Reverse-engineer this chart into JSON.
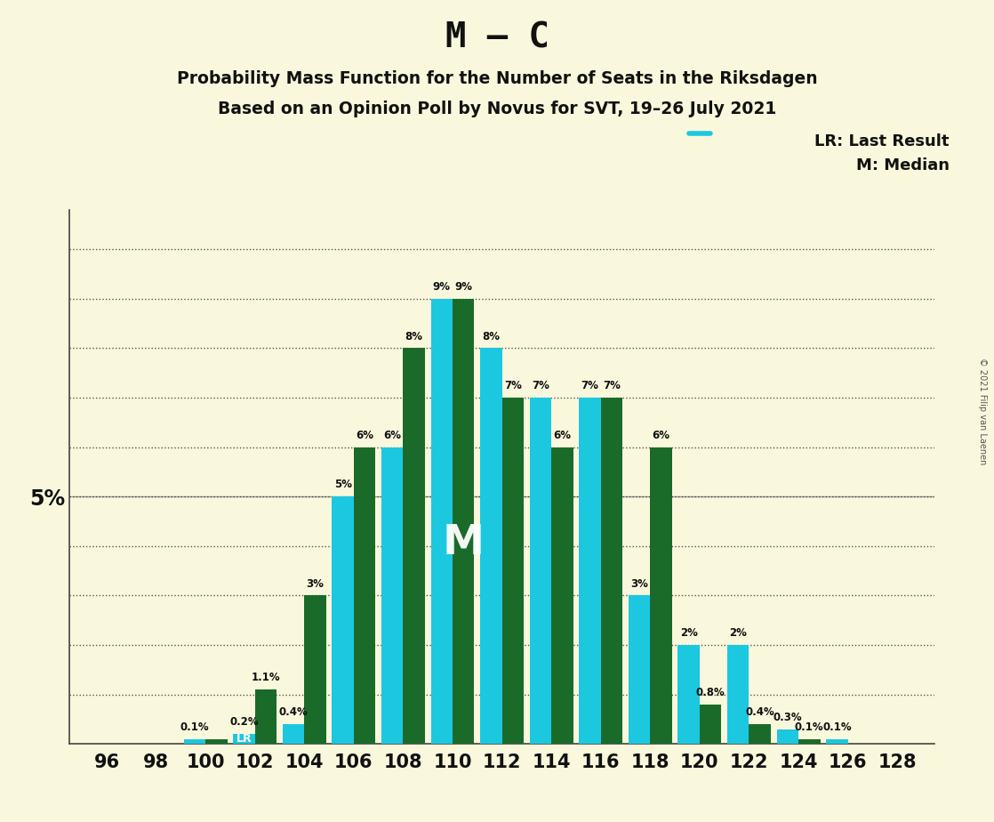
{
  "title": "M – C",
  "subtitle1": "Probability Mass Function for the Number of Seats in the Riksdagen",
  "subtitle2": "Based on an Opinion Poll by Novus for SVT, 19–26 July 2021",
  "copyright": "© 2021 Filip van Laenen",
  "legend_lr": "LR: Last Result",
  "legend_m": "M: Median",
  "median_label": "M",
  "lr_label": "LR",
  "ylabel": "5%",
  "background_color": "#FAF8DC",
  "bar_color_lr": "#1BC8E0",
  "bar_color_current": "#1A6B2A",
  "seats": [
    96,
    98,
    100,
    102,
    104,
    106,
    108,
    110,
    112,
    114,
    116,
    118,
    120,
    122,
    124,
    126,
    128
  ],
  "values_lr": [
    0.0,
    0.0,
    0.1,
    0.2,
    0.4,
    5.0,
    6.0,
    9.0,
    8.0,
    7.0,
    7.0,
    3.0,
    2.0,
    2.0,
    0.3,
    0.1,
    0.0
  ],
  "values_current": [
    0.0,
    0.0,
    0.1,
    1.1,
    3.0,
    6.0,
    8.0,
    9.0,
    7.0,
    6.0,
    7.0,
    6.0,
    0.8,
    0.4,
    0.1,
    0.0,
    0.0
  ],
  "labels_lr": [
    "0%",
    "0%",
    "0.1%",
    "0.2%",
    "0.4%",
    "5%",
    "6%",
    "9%",
    "8%",
    "7%",
    "7%",
    "3%",
    "2%",
    "2%",
    "0.3%",
    "0.1%",
    "0%"
  ],
  "labels_current": [
    "0%",
    "0%",
    "0.1%",
    "1.1%",
    "3%",
    "6%",
    "8%",
    "9%",
    "7%",
    "6%",
    "7%",
    "6%",
    "0.8%",
    "0.4%",
    "0.1%",
    "0%",
    "0%"
  ],
  "show_label_lr": [
    false,
    false,
    true,
    true,
    true,
    true,
    true,
    true,
    true,
    true,
    true,
    true,
    true,
    true,
    true,
    true,
    false
  ],
  "show_label_cur": [
    false,
    false,
    false,
    true,
    true,
    true,
    true,
    true,
    true,
    true,
    true,
    true,
    true,
    true,
    true,
    false,
    false
  ],
  "ylim": [
    0,
    10.8
  ],
  "median_seat_idx": 7,
  "lr_seat_idx": 3,
  "bar_width": 0.44,
  "label_fontsize": 8.5,
  "tick_fontsize": 15
}
